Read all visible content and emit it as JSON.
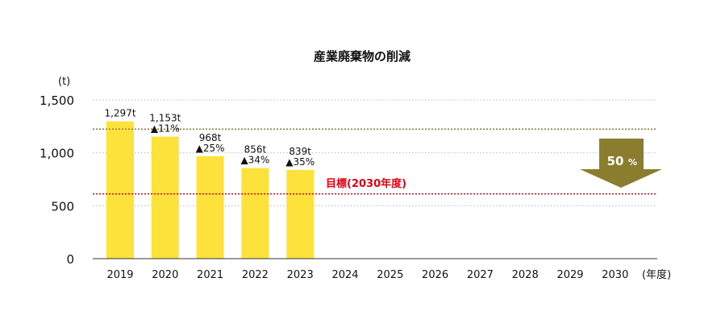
{
  "chart_data": {
    "type": "bar",
    "title": "産業廃棄物の削減",
    "y_unit": "(t)",
    "x_unit": "(年度)",
    "ylim": [
      0,
      1500
    ],
    "yticks": [
      {
        "value": 0,
        "label": "0"
      },
      {
        "value": 500,
        "label": "500"
      },
      {
        "value": 1000,
        "label": "1,000"
      },
      {
        "value": 1500,
        "label": "1,500"
      }
    ],
    "grid": true,
    "categories": [
      "2019",
      "2020",
      "2021",
      "2022",
      "2023",
      "2024",
      "2025",
      "2026",
      "2027",
      "2028",
      "2029",
      "2030"
    ],
    "values": [
      1297,
      1153,
      968,
      856,
      839,
      null,
      null,
      null,
      null,
      null,
      null,
      null
    ],
    "value_labels": [
      "1,297t",
      "1,153t",
      "968t",
      "856t",
      "839t",
      "",
      "",
      "",
      "",
      "",
      "",
      ""
    ],
    "reduction_labels": [
      "",
      "▲11%",
      "▲25%",
      "▲34%",
      "▲35%",
      "",
      "",
      "",
      "",
      "",
      "",
      ""
    ],
    "baseline_value": 1224,
    "target_value": 612,
    "target_label": "目標(2030年度)",
    "reduction_badge": {
      "number": "50",
      "unit": "%"
    },
    "colors": {
      "bar": "#fde23b",
      "baseline": "#8b7d2e",
      "target": "#e60012",
      "badge": "#8b7d2e",
      "grid": "#bbbbbb",
      "axis": "#333333"
    }
  }
}
